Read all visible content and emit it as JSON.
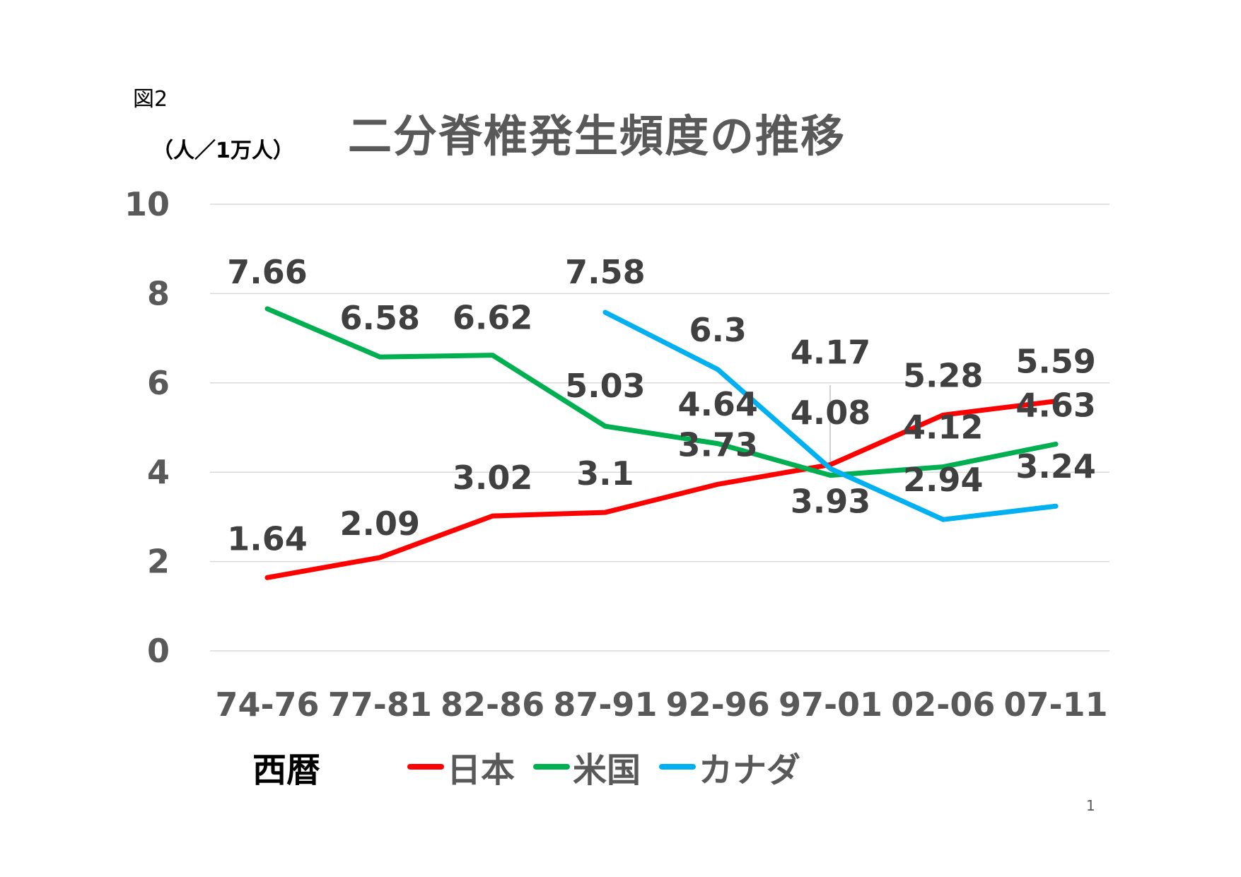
{
  "figure_label": "図2",
  "unit_label": "（人／1万人）",
  "page_number": "1",
  "chart_data": {
    "type": "line",
    "title": "二分脊椎発生頻度の推移",
    "xlabel": "西暦",
    "ylabel": "（人／1万人）",
    "ylim": [
      0,
      10
    ],
    "yticks": [
      "0",
      "2",
      "4",
      "6",
      "8",
      "10"
    ],
    "grid": true,
    "legend_position": "bottom",
    "categories": [
      "74-76",
      "77-81",
      "82-86",
      "87-91",
      "92-96",
      "97-01",
      "02-06",
      "07-11"
    ],
    "series": [
      {
        "name": "日本",
        "color": "#ff0000",
        "values": [
          1.64,
          2.09,
          3.02,
          3.1,
          3.73,
          4.17,
          5.28,
          5.59
        ],
        "labels": [
          "1.64",
          "2.09",
          "3.02",
          "3.1",
          "3.73",
          "4.17",
          "5.28",
          "5.59"
        ]
      },
      {
        "name": "米国",
        "color": "#00b050",
        "values": [
          7.66,
          6.58,
          6.62,
          5.03,
          4.64,
          3.93,
          4.12,
          4.63
        ],
        "labels": [
          "7.66",
          "6.58",
          "6.62",
          "5.03",
          "4.64",
          "3.93",
          "4.12",
          "4.63"
        ]
      },
      {
        "name": "カナダ",
        "color": "#00b0f0",
        "values": [
          null,
          null,
          null,
          7.58,
          6.3,
          4.08,
          2.94,
          3.24
        ],
        "labels": [
          null,
          null,
          null,
          "7.58",
          "6.3",
          "4.08",
          "2.94",
          "3.24"
        ]
      }
    ]
  }
}
